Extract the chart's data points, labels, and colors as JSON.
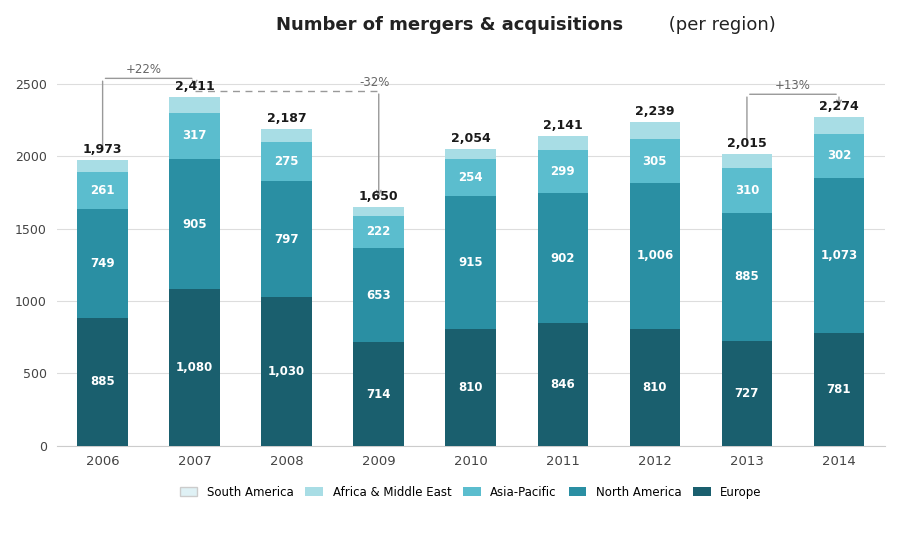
{
  "title": "Number of mergers & acquisitions",
  "title_suffix": " (per region)",
  "years": [
    "2006",
    "2007",
    "2008",
    "2009",
    "2010",
    "2011",
    "2012",
    "2013",
    "2014"
  ],
  "europe": [
    885,
    1080,
    1030,
    714,
    810,
    846,
    810,
    727,
    781
  ],
  "north_america": [
    749,
    905,
    797,
    653,
    915,
    902,
    1006,
    885,
    1073
  ],
  "asia_pacific": [
    261,
    317,
    275,
    222,
    254,
    299,
    305,
    310,
    302
  ],
  "africa_me": [
    78,
    109,
    85,
    61,
    75,
    94,
    118,
    93,
    118
  ],
  "south_america": [
    0,
    0,
    0,
    0,
    0,
    0,
    0,
    0,
    0
  ],
  "totals": [
    1973,
    2411,
    2187,
    1650,
    2054,
    2141,
    2239,
    2015,
    2274
  ],
  "colors": {
    "europe": "#1a5f6e",
    "north_america": "#2a8fa3",
    "asia_pacific": "#5bbdce",
    "africa_me": "#a8dde5",
    "south_america": "#dff1f5"
  },
  "legend_labels": [
    "South America",
    "Africa & Middle East",
    "Asia-Pacific",
    "North America",
    "Europe"
  ],
  "ylim": [
    0,
    2750
  ],
  "yticks": [
    0,
    500,
    1000,
    1500,
    2000,
    2500
  ],
  "annotation_2006_2007": "+22%",
  "annotation_2007_2009": "-32%",
  "annotation_2013_2014": "+13%",
  "background_color": "#ffffff"
}
